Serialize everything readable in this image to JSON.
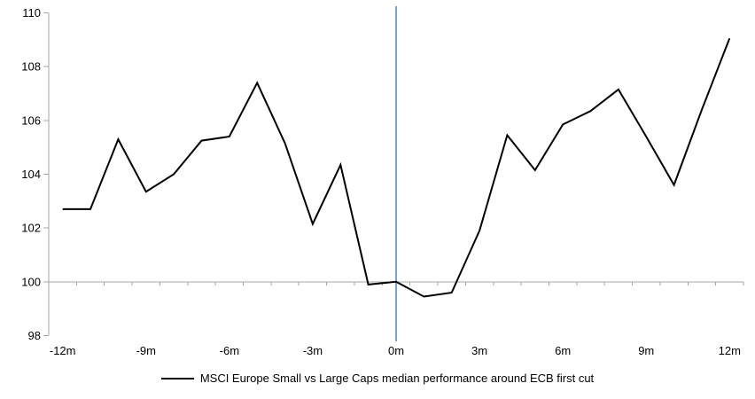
{
  "chart_data": {
    "type": "line",
    "title": "",
    "xlabel": "",
    "ylabel": "",
    "x_months": [
      -12,
      -11,
      -10,
      -9,
      -8,
      -7,
      -6,
      -5,
      -4,
      -3,
      -2,
      -1,
      0,
      1,
      2,
      3,
      4,
      5,
      6,
      7,
      8,
      9,
      10,
      11,
      12
    ],
    "series": [
      {
        "name": "MSCI Europe Small vs Large Caps median performance around ECB first cut",
        "values": [
          102.7,
          102.7,
          105.3,
          103.35,
          104.0,
          105.25,
          105.4,
          107.4,
          105.15,
          102.15,
          104.35,
          99.9,
          100.0,
          99.45,
          99.6,
          101.9,
          105.45,
          104.15,
          105.85,
          106.35,
          107.15,
          105.4,
          103.6,
          106.4,
          109.05
        ]
      }
    ],
    "x_tick_labels": [
      "-12m",
      "-9m",
      "-6m",
      "-3m",
      "0m",
      "3m",
      "6m",
      "9m",
      "12m"
    ],
    "x_tick_months": [
      -12,
      -9,
      -6,
      -3,
      0,
      3,
      6,
      9,
      12
    ],
    "y_tick_labels": [
      "98",
      "100",
      "102",
      "104",
      "106",
      "108",
      "110"
    ],
    "y_ticks": [
      98,
      100,
      102,
      104,
      106,
      108,
      110
    ],
    "ylim": [
      98,
      110
    ],
    "x_axis_cross_value": 100,
    "event_line_month": 0,
    "grid": "off",
    "legend_position": "bottom-center",
    "legend": "MSCI Europe Small vs Large Caps median performance around ECB first cut",
    "colors": {
      "series_line": "#000000",
      "axis_line": "#A6A6A6",
      "event_line": "#74A2D3",
      "label_text": "#000000"
    }
  }
}
